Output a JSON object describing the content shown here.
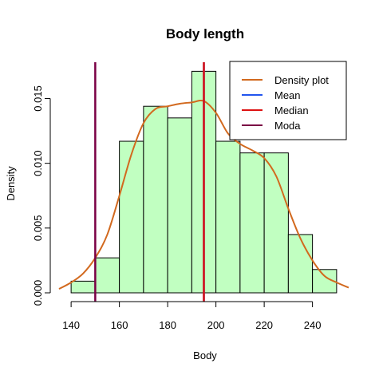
{
  "chart_data": {
    "type": "bar",
    "title": "Body length",
    "xlabel": "Body",
    "ylabel": "Density",
    "xlim": [
      135,
      255
    ],
    "ylim": [
      0,
      0.0178
    ],
    "x_ticks": [
      "140",
      "160",
      "180",
      "200",
      "220",
      "240"
    ],
    "x_tick_values": [
      140,
      160,
      180,
      200,
      220,
      240
    ],
    "y_ticks": [
      "0.000",
      "0.005",
      "0.010",
      "0.015"
    ],
    "y_tick_values": [
      0,
      0.005,
      0.01,
      0.015
    ],
    "histogram": {
      "bin_edges": [
        140,
        150,
        160,
        170,
        180,
        190,
        200,
        210,
        220,
        230,
        240,
        250
      ],
      "density": [
        0.0009,
        0.0027,
        0.0117,
        0.0144,
        0.0135,
        0.0171,
        0.0117,
        0.0108,
        0.0108,
        0.0045,
        0.0018
      ],
      "fill": "#c1ffc1",
      "border": "#000000"
    },
    "density_curve": {
      "name": "Density plot",
      "color": "#d2691e",
      "x": [
        135,
        140,
        145,
        150,
        155,
        160,
        165,
        170,
        175,
        180,
        185,
        190,
        195,
        200,
        205,
        210,
        215,
        220,
        225,
        230,
        235,
        240,
        245,
        250,
        255
      ],
      "y": [
        0.0003,
        0.0008,
        0.0015,
        0.0027,
        0.0045,
        0.0075,
        0.0107,
        0.0131,
        0.0142,
        0.0144,
        0.0146,
        0.0147,
        0.0148,
        0.0139,
        0.0123,
        0.0115,
        0.011,
        0.0104,
        0.009,
        0.0065,
        0.0042,
        0.0025,
        0.0013,
        0.0008,
        0.0004
      ]
    },
    "vertical_lines": [
      {
        "name": "Mean",
        "x": 195,
        "color": "#2255ee"
      },
      {
        "name": "Median",
        "x": 195,
        "color": "#dd1111"
      },
      {
        "name": "Moda",
        "x": 150,
        "color": "#7a0044"
      }
    ],
    "legend": {
      "position": "top-right",
      "items": [
        {
          "label": "Density plot",
          "color": "#d2691e"
        },
        {
          "label": "Mean",
          "color": "#2255ee"
        },
        {
          "label": "Median",
          "color": "#dd1111"
        },
        {
          "label": "Moda",
          "color": "#7a0044"
        }
      ]
    }
  }
}
